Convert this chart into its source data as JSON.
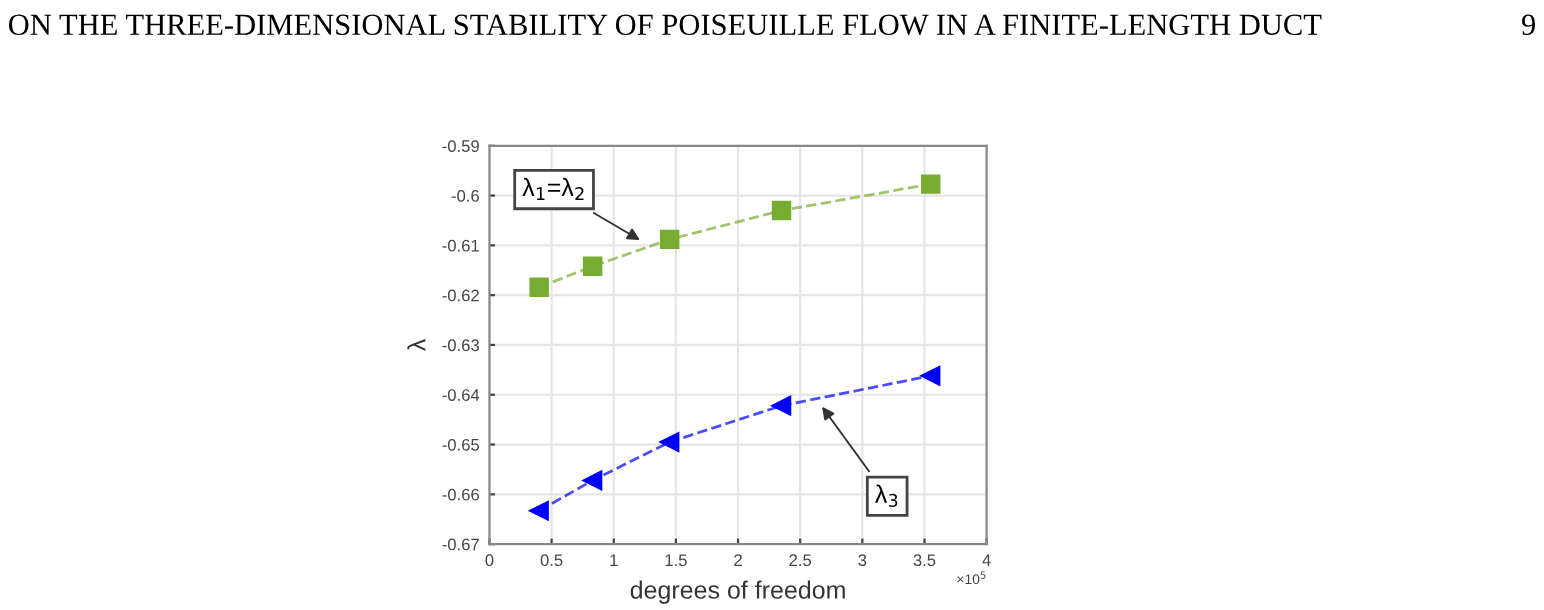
{
  "chart_data": {
    "type": "line",
    "title": "ON THE THREE-DIMENSIONAL STABILITY OF POISEUILLE FLOW IN A FINITE-LENGTH DUCT",
    "xlabel": "degrees of freedom",
    "ylabel": "λ",
    "x": [
      0.4,
      0.83,
      1.45,
      2.35,
      3.55
    ],
    "series": [
      {
        "color": "#77ac30",
        "marker": "square",
        "values": [
          -0.6184,
          -0.6142,
          -0.6088,
          -0.603,
          -0.5977
        ]
      },
      {
        "color": "#0000ff",
        "marker": "triangle",
        "values": [
          -0.6633,
          -0.6572,
          -0.6495,
          -0.6422,
          -0.6362
        ]
      }
    ],
    "xlim": [
      0,
      4
    ],
    "xticks": [
      0,
      0.5,
      1,
      1.5,
      2,
      2.5,
      3,
      3.5,
      4
    ],
    "ylim": [
      -0.67,
      -0.59
    ],
    "yticks": [
      -0.67,
      -0.66,
      -0.65,
      -0.64,
      -0.63,
      -0.62,
      -0.61,
      -0.6,
      -0.59
    ],
    "grid": true,
    "line_style": "dashed",
    "annotations": [
      {
        "text": "λ$_{1}$=λ$_{2}$",
        "x": 1.25,
        "y": -0.6095
      },
      {
        "text": "λ$_{3}$",
        "x": 2.65,
        "y": -0.6415
      },
      "×10$^{5}$",
      "9"
    ]
  }
}
